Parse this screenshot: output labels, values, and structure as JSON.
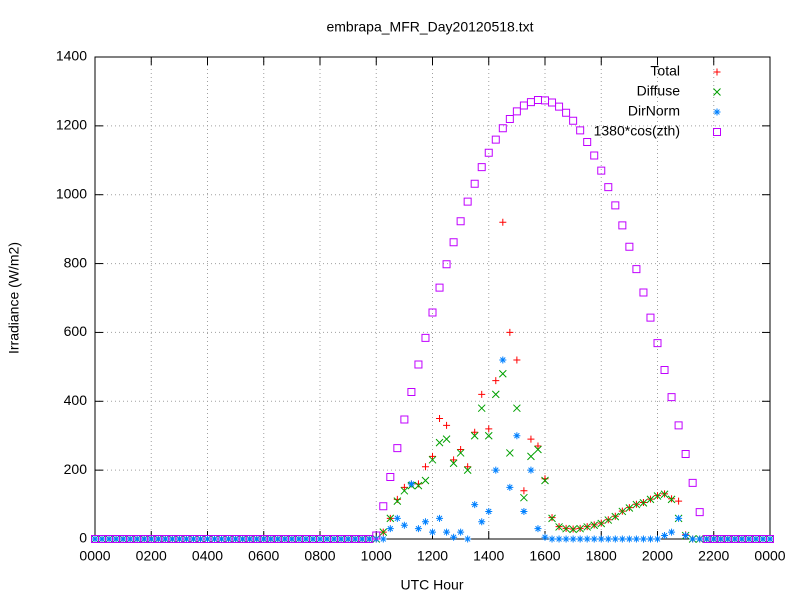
{
  "chart_data": {
    "type": "scatter",
    "title": "embrapa_MFR_Day20120518.txt",
    "x_label": "UTC Hour",
    "y_label": "Irradiance (W/m2)",
    "xlim": [
      0,
      24
    ],
    "ylim": [
      0,
      1400
    ],
    "xticks": [
      {
        "value": 0,
        "label": "0000"
      },
      {
        "value": 2,
        "label": "0200"
      },
      {
        "value": 4,
        "label": "0400"
      },
      {
        "value": 6,
        "label": "0600"
      },
      {
        "value": 8,
        "label": "0800"
      },
      {
        "value": 10,
        "label": "1000"
      },
      {
        "value": 12,
        "label": "1200"
      },
      {
        "value": 14,
        "label": "1400"
      },
      {
        "value": 16,
        "label": "1600"
      },
      {
        "value": 18,
        "label": "1800"
      },
      {
        "value": 20,
        "label": "2000"
      },
      {
        "value": 22,
        "label": "2200"
      },
      {
        "value": 24,
        "label": "0000"
      }
    ],
    "yticks": [
      0,
      200,
      400,
      600,
      800,
      1000,
      1200,
      1400
    ],
    "grid": true,
    "legend": "top right",
    "x": [
      0,
      0.25,
      0.5,
      0.75,
      1,
      1.25,
      1.5,
      1.75,
      2,
      2.25,
      2.5,
      2.75,
      3,
      3.25,
      3.5,
      3.75,
      4,
      4.25,
      4.5,
      4.75,
      5,
      5.25,
      5.5,
      5.75,
      6,
      6.25,
      6.5,
      6.75,
      7,
      7.25,
      7.5,
      7.75,
      8,
      8.25,
      8.5,
      8.75,
      9,
      9.25,
      9.5,
      9.75,
      10,
      10.25,
      10.5,
      10.75,
      11,
      11.25,
      11.5,
      11.75,
      12,
      12.25,
      12.5,
      12.75,
      13,
      13.25,
      13.5,
      13.75,
      14,
      14.25,
      14.5,
      14.75,
      15,
      15.25,
      15.5,
      15.75,
      16,
      16.25,
      16.5,
      16.75,
      17,
      17.25,
      17.5,
      17.75,
      18,
      18.25,
      18.5,
      18.75,
      19,
      19.25,
      19.5,
      19.75,
      20,
      20.25,
      20.5,
      20.75,
      21,
      21.25,
      21.5,
      21.75,
      22,
      22.25,
      22.5,
      22.75,
      23,
      23.25,
      23.5,
      23.75,
      24
    ],
    "series": [
      {
        "name": "Total",
        "color": "#ff0000",
        "marker": "plus",
        "values": [
          0,
          0,
          0,
          0,
          0,
          0,
          0,
          0,
          0,
          0,
          0,
          0,
          0,
          0,
          0,
          0,
          0,
          0,
          0,
          0,
          0,
          0,
          0,
          0,
          0,
          0,
          0,
          0,
          0,
          0,
          0,
          0,
          0,
          0,
          0,
          0,
          0,
          0,
          0,
          0,
          0,
          20,
          60,
          115,
          150,
          160,
          160,
          210,
          240,
          350,
          330,
          230,
          260,
          210,
          310,
          420,
          320,
          460,
          920,
          600,
          520,
          140,
          290,
          270,
          175,
          62,
          36,
          31,
          29,
          31,
          36,
          41,
          46,
          56,
          66,
          81,
          91,
          101,
          106,
          116,
          126,
          131,
          117,
          110,
          12,
          0,
          0,
          0,
          0,
          0,
          0,
          0,
          0,
          0,
          0,
          0,
          0
        ]
      },
      {
        "name": "Diffuse",
        "color": "#00a000",
        "marker": "cross",
        "values": [
          0,
          0,
          0,
          0,
          0,
          0,
          0,
          0,
          0,
          0,
          0,
          0,
          0,
          0,
          0,
          0,
          0,
          0,
          0,
          0,
          0,
          0,
          0,
          0,
          0,
          0,
          0,
          0,
          0,
          0,
          0,
          0,
          0,
          0,
          0,
          0,
          0,
          0,
          0,
          0,
          0,
          20,
          60,
          110,
          140,
          155,
          155,
          170,
          230,
          280,
          290,
          220,
          250,
          200,
          300,
          380,
          300,
          420,
          480,
          250,
          380,
          120,
          240,
          260,
          170,
          60,
          35,
          30,
          28,
          30,
          35,
          40,
          45,
          55,
          65,
          80,
          90,
          100,
          105,
          115,
          125,
          130,
          115,
          60,
          10,
          0,
          0,
          0,
          0,
          0,
          0,
          0,
          0,
          0,
          0,
          0,
          0
        ]
      },
      {
        "name": "DirNorm",
        "color": "#0080ff",
        "marker": "star",
        "values": [
          0,
          0,
          0,
          0,
          0,
          0,
          0,
          0,
          0,
          0,
          0,
          0,
          0,
          0,
          0,
          0,
          0,
          0,
          0,
          0,
          0,
          0,
          0,
          0,
          0,
          0,
          0,
          0,
          0,
          0,
          0,
          0,
          0,
          0,
          0,
          0,
          0,
          0,
          0,
          0,
          0,
          0,
          30,
          60,
          40,
          160,
          30,
          50,
          20,
          60,
          20,
          5,
          20,
          0,
          100,
          50,
          80,
          200,
          520,
          150,
          300,
          80,
          200,
          30,
          5,
          0,
          0,
          0,
          0,
          0,
          0,
          0,
          0,
          0,
          0,
          0,
          0,
          0,
          0,
          0,
          0,
          10,
          20,
          60,
          10,
          0,
          0,
          0,
          0,
          0,
          0,
          0,
          0,
          0,
          0,
          0,
          0
        ]
      },
      {
        "name": "1380*cos(zth)",
        "color": "#c000ff",
        "marker": "square",
        "values": [
          0,
          0,
          0,
          0,
          0,
          0,
          0,
          0,
          0,
          0,
          0,
          0,
          0,
          0,
          0,
          0,
          0,
          0,
          0,
          0,
          0,
          0,
          0,
          0,
          0,
          0,
          0,
          0,
          0,
          0,
          0,
          0,
          0,
          0,
          0,
          0,
          0,
          0,
          0,
          0,
          10,
          95,
          180,
          264,
          347,
          427,
          507,
          584,
          658,
          730,
          798,
          862,
          923,
          980,
          1032,
          1080,
          1122,
          1160,
          1193,
          1220,
          1242,
          1259,
          1269,
          1275,
          1274,
          1268,
          1256,
          1238,
          1215,
          1187,
          1153,
          1114,
          1070,
          1022,
          969,
          911,
          849,
          784,
          716,
          643,
          569,
          491,
          412,
          330,
          247,
          163,
          78,
          0,
          0,
          0,
          0,
          0,
          0,
          0,
          0,
          0,
          0
        ]
      }
    ]
  }
}
